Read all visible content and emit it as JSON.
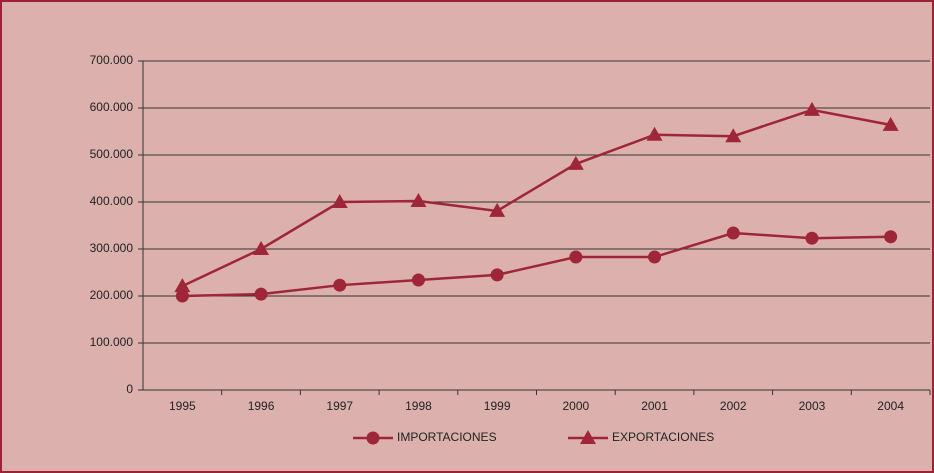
{
  "chart_data": {
    "type": "line",
    "categories": [
      "1995",
      "1996",
      "1997",
      "1998",
      "1999",
      "2000",
      "2001",
      "2002",
      "2003",
      "2004"
    ],
    "series": [
      {
        "name": "IMPORTACIONES",
        "color": "#9e2638",
        "marker": "circle",
        "values": [
          200000,
          204000,
          223000,
          234000,
          245000,
          283000,
          283000,
          334000,
          323000,
          326000
        ]
      },
      {
        "name": "EXPORTACIONES",
        "color": "#9e2638",
        "marker": "triangle",
        "values": [
          221000,
          300000,
          400000,
          402000,
          381000,
          481000,
          543000,
          540000,
          596000,
          564000
        ]
      }
    ],
    "ylim": [
      0,
      700000
    ],
    "yticks": [
      0,
      {
        "value": 100000,
        "label": "100.000"
      },
      {
        "value": 200000,
        "label": "200.000"
      },
      {
        "value": 300000,
        "label": "300.000"
      },
      {
        "value": 400000,
        "label": "400.000"
      },
      {
        "value": 500000,
        "label": "500.000"
      },
      {
        "value": 600000,
        "label": "600.000"
      },
      {
        "value": 700000,
        "label": "700.000"
      }
    ],
    "grid": true,
    "legend": "bottom"
  }
}
